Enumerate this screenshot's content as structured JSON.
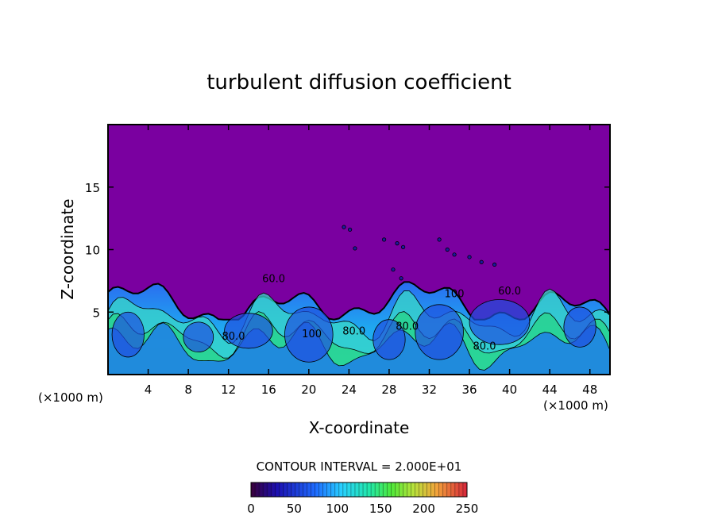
{
  "chart_data": {
    "type": "heatmap",
    "title": "turbulent diffusion coefficient",
    "xlabel": "X-coordinate",
    "ylabel": "Z-coordinate",
    "x_unit": "(×1000 m)",
    "x_unit_right": "(×1000 m)",
    "xlim": [
      0,
      50
    ],
    "ylim": [
      0,
      20
    ],
    "x_ticks": [
      4,
      8,
      12,
      16,
      20,
      24,
      28,
      32,
      36,
      40,
      44,
      48
    ],
    "y_ticks": [
      5,
      10,
      15
    ],
    "x_tick_labels": [
      "4",
      "8",
      "12",
      "16",
      "20",
      "24",
      "28",
      "32",
      "36",
      "40",
      "44",
      "48"
    ],
    "y_tick_labels": [
      "5",
      "10",
      "15"
    ],
    "contour_interval_text": "CONTOUR INTERVAL = 2.000E+01",
    "colorbar": {
      "min": 0,
      "max": 250,
      "ticks": [
        0,
        50,
        100,
        150,
        200,
        250
      ],
      "tick_labels": [
        "0",
        "50",
        "100",
        "150",
        "200",
        "250"
      ]
    },
    "contour_labels": [
      {
        "text": "80.0",
        "x": 12.5,
        "y": 2.8
      },
      {
        "text": "100",
        "x": 20.3,
        "y": 3.0
      },
      {
        "text": "80.0",
        "x": 24.5,
        "y": 3.2
      },
      {
        "text": "80.0",
        "x": 29.8,
        "y": 3.6
      },
      {
        "text": "80.0",
        "x": 37.5,
        "y": 2.0
      },
      {
        "text": "60.0",
        "x": 40.0,
        "y": 6.4
      },
      {
        "text": "60.0",
        "x": 16.5,
        "y": 7.4
      },
      {
        "text": "100",
        "x": 34.5,
        "y": 6.2
      }
    ],
    "background_value": 0,
    "colors": {
      "background": "#7a00a0",
      "frame": "#000000"
    }
  }
}
